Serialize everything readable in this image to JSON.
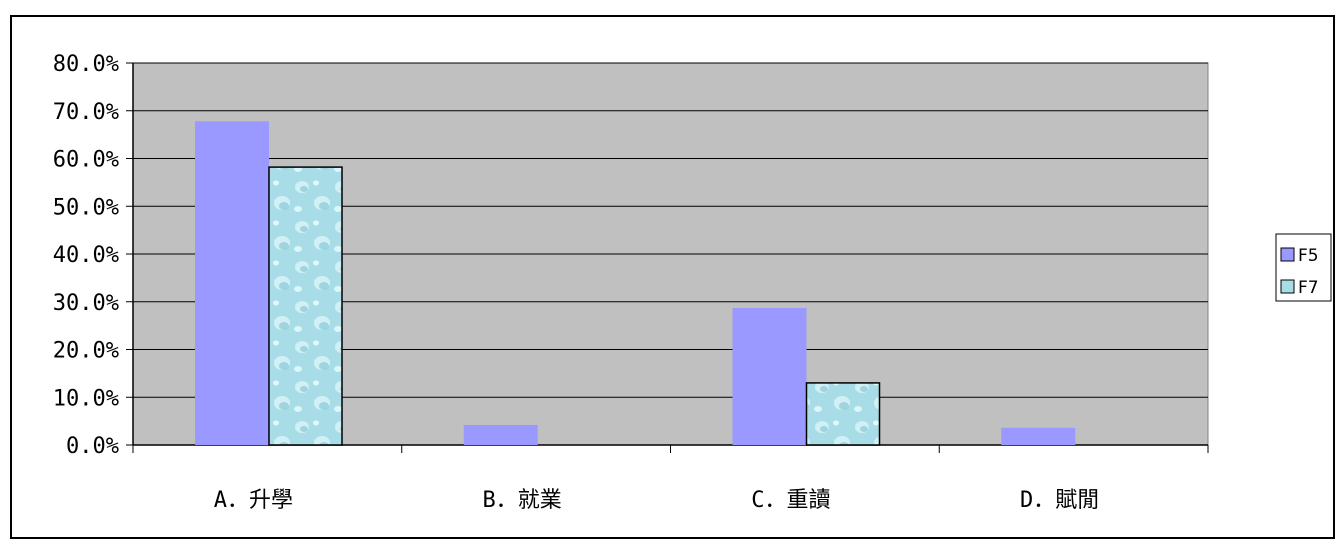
{
  "chart_data": {
    "type": "bar",
    "categories": [
      "A．升學",
      "B．就業",
      "C．重讀",
      "D．賦閒"
    ],
    "series": [
      {
        "name": "F5",
        "values": [
          67.8,
          4.2,
          28.7,
          3.6
        ],
        "color": "#9999ff"
      },
      {
        "name": "F7",
        "values": [
          58.2,
          0,
          13.0,
          0
        ],
        "color": "#a8dde8"
      }
    ],
    "ylim": [
      0,
      80
    ],
    "yticks": [
      "0.0%",
      "10.0%",
      "20.0%",
      "30.0%",
      "40.0%",
      "50.0%",
      "60.0%",
      "70.0%",
      "80.0%"
    ],
    "ytick_values": [
      0,
      10,
      20,
      30,
      40,
      50,
      60,
      70,
      80
    ],
    "grid": true,
    "plot_background": "#c0c0c0",
    "legend_position": "right",
    "title": "",
    "xlabel": "",
    "ylabel": ""
  }
}
